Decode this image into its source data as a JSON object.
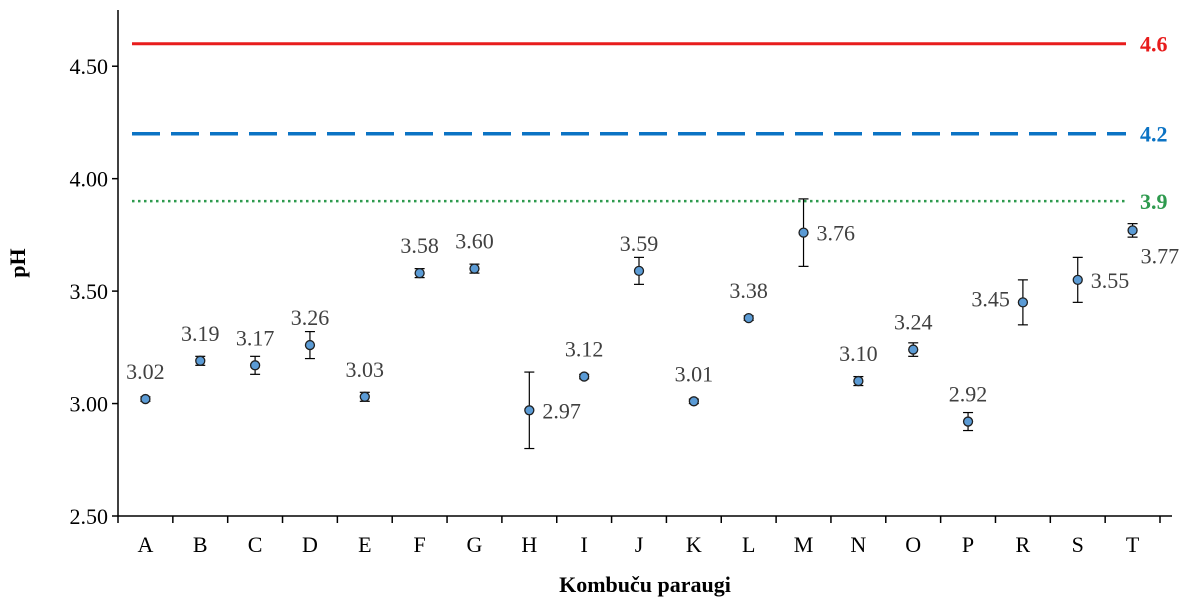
{
  "chart_data": {
    "type": "scatter",
    "title": "",
    "xlabel": "Kombuču paraugi",
    "ylabel": "pH",
    "ylim": [
      2.5,
      4.75
    ],
    "yticks": [
      "2.50",
      "3.00",
      "3.50",
      "4.00",
      "4.50"
    ],
    "grid": false,
    "categories": [
      "A",
      "B",
      "C",
      "D",
      "E",
      "F",
      "G",
      "H",
      "I",
      "J",
      "K",
      "L",
      "M",
      "N",
      "O",
      "P",
      "R",
      "S",
      "T"
    ],
    "series": [
      {
        "values": [
          3.02,
          3.19,
          3.17,
          3.26,
          3.03,
          3.58,
          3.6,
          2.97,
          3.12,
          3.59,
          3.01,
          3.38,
          3.76,
          3.1,
          3.24,
          2.92,
          3.45,
          3.55,
          3.77
        ],
        "errors": [
          0.01,
          0.02,
          0.04,
          0.06,
          0.02,
          0.02,
          0.02,
          0.17,
          0.01,
          0.06,
          0.01,
          0.01,
          0.15,
          0.02,
          0.03,
          0.04,
          0.1,
          0.1,
          0.03
        ],
        "labels": [
          "3.02",
          "3.19",
          "3.17",
          "3.26",
          "3.03",
          "3.58",
          "3.60",
          "2.97",
          "3.12",
          "3.59",
          "3.01",
          "3.38",
          "3.76",
          "3.10",
          "3.24",
          "2.92",
          "3.45",
          "3.55",
          "3.77"
        ],
        "label_positions": [
          "top",
          "top",
          "top",
          "top",
          "top",
          "top",
          "top",
          "right",
          "top",
          "top",
          "top",
          "top",
          "right",
          "top",
          "top",
          "top",
          "left",
          "right",
          "bottom-right"
        ],
        "marker_color": "#5B9BD5"
      }
    ],
    "reference_lines": [
      {
        "value": 4.6,
        "label": "4.6",
        "color": "#E81C1C",
        "style": "solid"
      },
      {
        "value": 4.2,
        "label": "4.2",
        "color": "#0B73C4",
        "style": "dashed"
      },
      {
        "value": 3.9,
        "label": "3.9",
        "color": "#2E9A4E",
        "style": "dotted"
      }
    ]
  }
}
